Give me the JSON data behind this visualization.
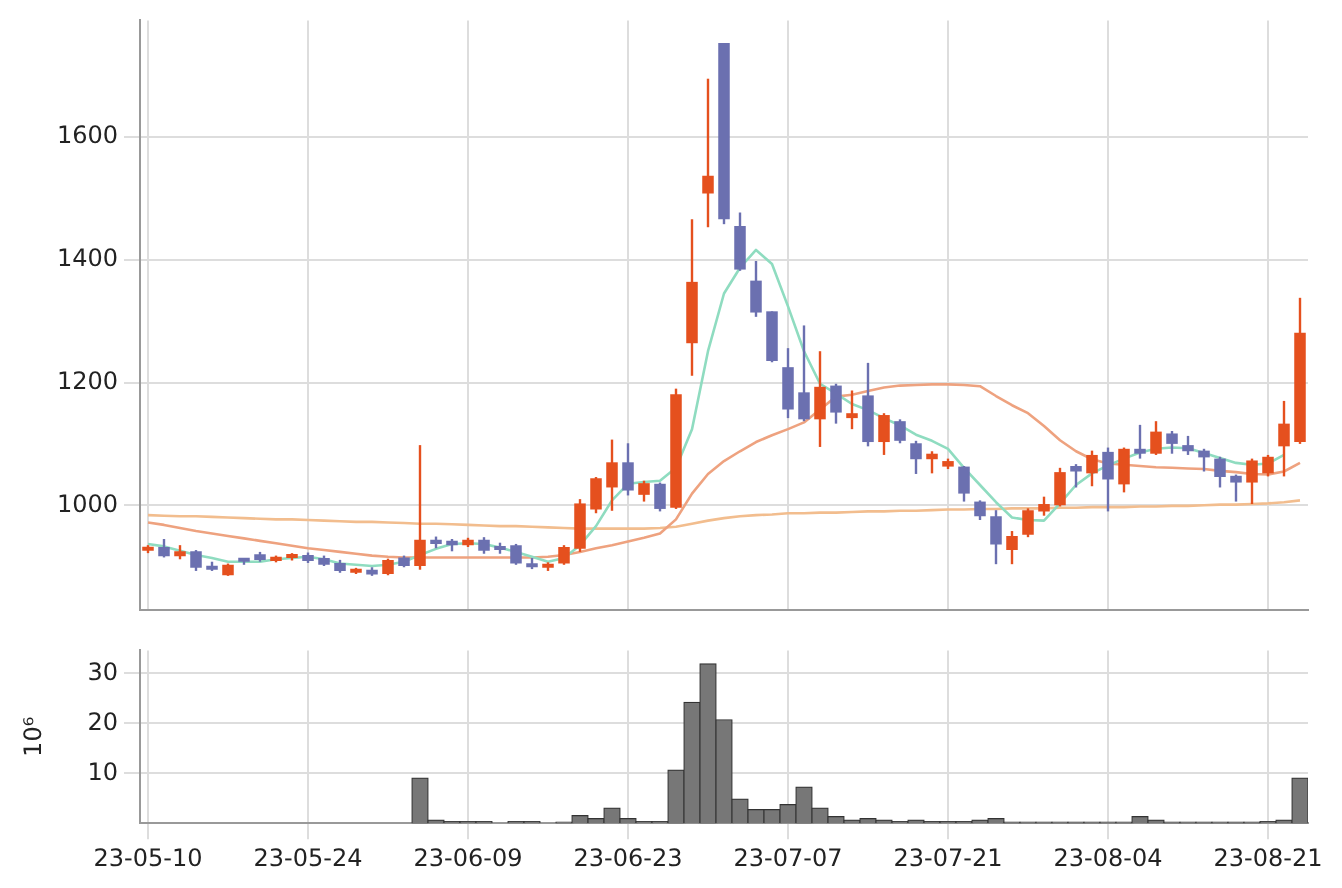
{
  "chart_data": [
    {
      "type": "candlestick",
      "categories": [
        null,
        null,
        null,
        null,
        null,
        null,
        null,
        null,
        null,
        null,
        null,
        null,
        null,
        null,
        null,
        null,
        null,
        null,
        null,
        null,
        null,
        null,
        null,
        null,
        null,
        null,
        null,
        null,
        null,
        null,
        null,
        null,
        null,
        null,
        null,
        null,
        null,
        null,
        null,
        null,
        null,
        null,
        null,
        null,
        null,
        null,
        null,
        null,
        null,
        null,
        null,
        null,
        null,
        null,
        null,
        null,
        null,
        null,
        null,
        null,
        null,
        null,
        null,
        null,
        null,
        null,
        null,
        null,
        null,
        null,
        null,
        null,
        null
      ],
      "ohlc": [
        [
          926,
          935,
          922,
          931
        ],
        [
          932,
          945,
          915,
          917
        ],
        [
          917,
          935,
          912,
          925
        ],
        [
          925,
          927,
          893,
          898
        ],
        [
          900,
          908,
          893,
          895
        ],
        [
          886,
          905,
          885,
          903
        ],
        [
          910,
          914,
          903,
          908
        ],
        [
          920,
          924,
          908,
          911
        ],
        [
          909,
          918,
          907,
          916
        ],
        [
          914,
          922,
          910,
          916
        ],
        [
          919,
          923,
          906,
          909
        ],
        [
          914,
          918,
          901,
          903
        ],
        [
          906,
          911,
          890,
          893
        ],
        [
          890,
          898,
          888,
          896
        ],
        [
          895,
          899,
          885,
          887
        ],
        [
          888,
          913,
          886,
          911
        ],
        [
          915,
          918,
          899,
          901
        ],
        [
          901,
          1098,
          895,
          944
        ],
        [
          944,
          949,
          930,
          937
        ],
        [
          942,
          945,
          925,
          935
        ],
        [
          935,
          947,
          932,
          944
        ],
        [
          944,
          948,
          921,
          926
        ],
        [
          931,
          939,
          921,
          927
        ],
        [
          935,
          937,
          903,
          905
        ],
        [
          905,
          914,
          896,
          899
        ],
        [
          898,
          907,
          893,
          904
        ],
        [
          905,
          935,
          903,
          932
        ],
        [
          929,
          1010,
          924,
          1003
        ],
        [
          993,
          1046,
          987,
          1044
        ],
        [
          1029,
          1107,
          991,
          1070
        ],
        [
          1070,
          1101,
          1016,
          1024
        ],
        [
          1017,
          1040,
          1006,
          1036
        ],
        [
          1035,
          1037,
          990,
          994
        ],
        [
          996,
          1190,
          994,
          1181
        ],
        [
          1264,
          1466,
          1211,
          1364
        ],
        [
          1508,
          1695,
          1453,
          1537
        ],
        [
          1753,
          1753,
          1458,
          1466
        ],
        [
          1455,
          1477,
          1382,
          1384
        ],
        [
          1366,
          1398,
          1307,
          1314
        ],
        [
          1316,
          1316,
          1233,
          1235
        ],
        [
          1225,
          1256,
          1142,
          1156
        ],
        [
          1184,
          1293,
          1137,
          1140
        ],
        [
          1140,
          1251,
          1095,
          1193
        ],
        [
          1195,
          1198,
          1133,
          1151
        ],
        [
          1142,
          1187,
          1124,
          1150
        ],
        [
          1179,
          1232,
          1096,
          1103
        ],
        [
          1103,
          1150,
          1082,
          1147
        ],
        [
          1137,
          1140,
          1101,
          1105
        ],
        [
          1101,
          1105,
          1051,
          1075
        ],
        [
          1075,
          1088,
          1052,
          1084
        ],
        [
          1063,
          1076,
          1059,
          1072
        ],
        [
          1063,
          1064,
          1006,
          1019
        ],
        [
          1006,
          1008,
          976,
          982
        ],
        [
          982,
          992,
          904,
          936
        ],
        [
          927,
          958,
          904,
          950
        ],
        [
          952,
          995,
          948,
          992
        ],
        [
          990,
          1014,
          983,
          1002
        ],
        [
          1000,
          1061,
          998,
          1054
        ],
        [
          1064,
          1067,
          1029,
          1055
        ],
        [
          1052,
          1089,
          1031,
          1082
        ],
        [
          1087,
          1094,
          990,
          1042
        ],
        [
          1034,
          1094,
          1021,
          1092
        ],
        [
          1092,
          1131,
          1076,
          1084
        ],
        [
          1084,
          1137,
          1082,
          1120
        ],
        [
          1117,
          1121,
          1084,
          1100
        ],
        [
          1098,
          1113,
          1082,
          1088
        ],
        [
          1089,
          1092,
          1055,
          1078
        ],
        [
          1076,
          1079,
          1029,
          1046
        ],
        [
          1048,
          1050,
          1006,
          1037
        ],
        [
          1037,
          1076,
          1002,
          1073
        ],
        [
          1052,
          1082,
          1047,
          1079
        ],
        [
          1096,
          1170,
          1047,
          1133
        ],
        [
          1103,
          1338,
          1100,
          1281
        ]
      ],
      "colors": [
        "#e5501e",
        "#6b70b0",
        "#e5501e",
        "#6b70b0",
        "#6b70b0",
        "#e5501e",
        "#6b70b0",
        "#6b70b0",
        "#e5501e",
        "#e5501e",
        "#6b70b0",
        "#6b70b0",
        "#6b70b0",
        "#e5501e",
        "#6b70b0",
        "#e5501e",
        "#6b70b0",
        "#e5501e",
        "#6b70b0",
        "#6b70b0",
        "#e5501e",
        "#6b70b0",
        "#6b70b0",
        "#6b70b0",
        "#6b70b0",
        "#e5501e",
        "#e5501e",
        "#e5501e",
        "#e5501e",
        "#e5501e",
        "#6b70b0",
        "#e5501e",
        "#6b70b0",
        "#e5501e",
        "#e5501e",
        "#e5501e",
        "#6b70b0",
        "#6b70b0",
        "#6b70b0",
        "#6b70b0",
        "#6b70b0",
        "#6b70b0",
        "#e5501e",
        "#6b70b0",
        "#e5501e",
        "#6b70b0",
        "#e5501e",
        "#6b70b0",
        "#6b70b0",
        "#e5501e",
        "#e5501e",
        "#6b70b0",
        "#6b70b0",
        "#6b70b0",
        "#e5501e",
        "#e5501e",
        "#e5501e",
        "#e5501e",
        "#6b70b0",
        "#e5501e",
        "#6b70b0",
        "#e5501e",
        "#6b70b0",
        "#e5501e",
        "#6b70b0",
        "#6b70b0",
        "#6b70b0",
        "#6b70b0",
        "#6b70b0",
        "#e5501e",
        "#e5501e",
        "#e5501e",
        "#e5501e"
      ],
      "series": [
        {
          "type": "line",
          "color": "#8fdcc0",
          "values": [
            937,
            933,
            926,
            919,
            914,
            908,
            908,
            908,
            912,
            914,
            916,
            912,
            905,
            903,
            901,
            903,
            908,
            919,
            929,
            937,
            938,
            937,
            931,
            924,
            916,
            908,
            914,
            935,
            966,
            1008,
            1035,
            1038,
            1040,
            1061,
            1124,
            1251,
            1345,
            1387,
            1416,
            1393,
            1324,
            1251,
            1198,
            1182,
            1165,
            1155,
            1142,
            1130,
            1115,
            1105,
            1092,
            1061,
            1033,
            1005,
            980,
            976,
            975,
            1003,
            1033,
            1052,
            1065,
            1076,
            1086,
            1092,
            1094,
            1093,
            1085,
            1077,
            1069,
            1066,
            1068,
            1082,
            null
          ]
        },
        {
          "type": "line",
          "color": "#eea27f",
          "values": [
            972,
            968,
            963,
            958,
            954,
            950,
            946,
            942,
            938,
            934,
            930,
            927,
            924,
            921,
            918,
            916,
            915,
            915,
            915,
            915,
            915,
            915,
            915,
            915,
            915,
            916,
            919,
            924,
            930,
            935,
            941,
            947,
            954,
            977,
            1019,
            1051,
            1072,
            1088,
            1103,
            1114,
            1124,
            1135,
            1156,
            1177,
            1180,
            1186,
            1192,
            1195,
            1196,
            1197,
            1197,
            1196,
            1194,
            1178,
            1163,
            1150,
            1129,
            1106,
            1088,
            1075,
            1068,
            1066,
            1064,
            1062,
            1061,
            1060,
            1059,
            1056,
            1054,
            1051,
            1050,
            1055,
            1069
          ]
        },
        {
          "type": "line",
          "color": "#f2bd8e",
          "values": [
            984,
            983,
            982,
            982,
            981,
            980,
            979,
            978,
            977,
            977,
            976,
            975,
            974,
            973,
            973,
            972,
            971,
            970,
            970,
            969,
            968,
            967,
            966,
            966,
            965,
            964,
            963,
            962,
            962,
            962,
            962,
            962,
            963,
            965,
            970,
            975,
            979,
            982,
            984,
            985,
            987,
            987,
            988,
            988,
            989,
            990,
            990,
            991,
            991,
            992,
            993,
            993,
            994,
            994,
            995,
            995,
            995,
            996,
            996,
            997,
            997,
            997,
            998,
            998,
            999,
            999,
            1000,
            1001,
            1001,
            1002,
            1003,
            1005,
            1008
          ]
        }
      ],
      "ylim": [
        830,
        1790
      ],
      "yticks": [
        1000,
        1200,
        1400,
        1600
      ],
      "grid": true,
      "tick_labels": "y"
    },
    {
      "type": "bar",
      "categories": [
        "23-05-10",
        null,
        null,
        null,
        null,
        null,
        null,
        null,
        null,
        null,
        "23-05-24",
        null,
        null,
        null,
        null,
        null,
        null,
        null,
        null,
        null,
        "23-06-09",
        null,
        null,
        null,
        null,
        null,
        null,
        null,
        null,
        null,
        "23-06-23",
        null,
        null,
        null,
        null,
        null,
        null,
        null,
        null,
        null,
        "23-07-07",
        null,
        null,
        null,
        null,
        null,
        null,
        null,
        null,
        null,
        "23-07-21",
        null,
        null,
        null,
        null,
        null,
        null,
        null,
        null,
        null,
        "23-08-04",
        null,
        null,
        null,
        null,
        null,
        null,
        null,
        null,
        null,
        "23-08-21",
        null,
        null
      ],
      "values": [
        0,
        0,
        0,
        0,
        0,
        0,
        0,
        0,
        0,
        0,
        0,
        0,
        0,
        0,
        0,
        0,
        0,
        9.0,
        0.6,
        0.3,
        0.3,
        0.3,
        0,
        0.3,
        0.3,
        0,
        0.2,
        1.5,
        0.9,
        3.0,
        0.9,
        0.3,
        0.3,
        10.6,
        24.2,
        31.9,
        20.7,
        4.8,
        2.7,
        2.7,
        3.7,
        7.2,
        3.0,
        1.3,
        0.6,
        0.9,
        0.6,
        0.3,
        0.6,
        0.3,
        0.3,
        0.3,
        0.6,
        0.9,
        0.2,
        0.2,
        0.2,
        0.2,
        0.2,
        0.2,
        0.2,
        0.2,
        1.3,
        0.6,
        0.2,
        0.2,
        0.2,
        0.2,
        0.2,
        0.2,
        0.3,
        0.6,
        9.0
      ],
      "color": "#777777",
      "ylabel": "10⁶",
      "ylim": [
        0,
        34.6
      ],
      "yticks": [
        10,
        20,
        30
      ],
      "grid": true
    }
  ]
}
